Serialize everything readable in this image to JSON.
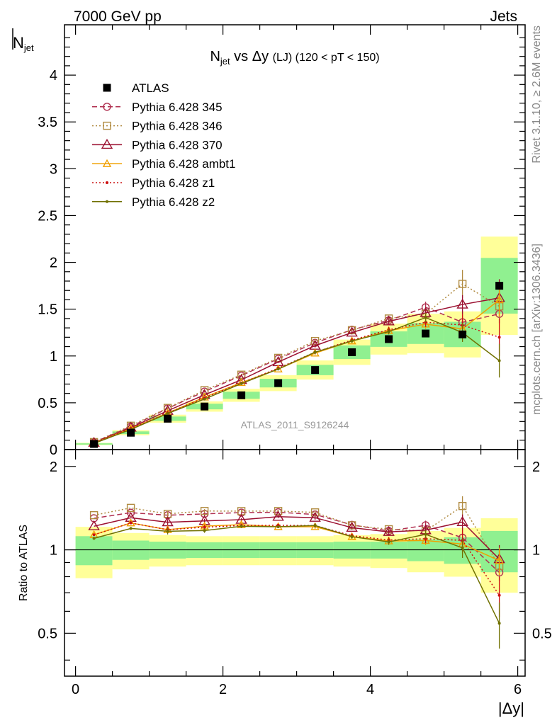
{
  "header": {
    "left": "7000 GeV pp",
    "right": "Jets"
  },
  "side_labels": {
    "rivet": "Rivet 3.1.10, ≥ 2.6M events",
    "mcplots": "mcplots.cern.ch [arXiv:1306.3436]"
  },
  "watermark": "ATLAS_2011_S9126244",
  "title": {
    "n": "N",
    "sub": "jet",
    "rest": " vs Δy ",
    "lj": "(LJ)",
    "range": " (120 < pT < 150)"
  },
  "ylabel": {
    "n": "N",
    "sub": "jet"
  },
  "xlabel": "|Δy|",
  "ratio_ylabel": "Ratio to ATLAS",
  "colors": {
    "atlas": "#000000",
    "p345": "#b03050",
    "p346": "#b08a40",
    "p370": "#9b1030",
    "ambt1": "#f0a000",
    "z1": "#cc1010",
    "z2": "#707000",
    "band_inner": "#90f090",
    "band_outer": "#ffff99"
  },
  "chart_data": {
    "type": "line",
    "x": [
      0.25,
      0.75,
      1.25,
      1.75,
      2.25,
      2.75,
      3.25,
      3.75,
      4.25,
      4.75,
      5.25,
      5.75
    ],
    "xlim": [
      -0.15,
      6.1
    ],
    "ylim": [
      0,
      4.5
    ],
    "ratio_ylim": [
      0.35,
      2.3
    ],
    "x_ticks": [
      0,
      2,
      4,
      6
    ],
    "y_ticks": [
      0,
      0.5,
      1,
      1.5,
      2,
      2.5,
      3,
      3.5,
      4
    ],
    "y_tick_labels": [
      "0",
      "0.5",
      "1",
      "1.5",
      "2",
      "2.5",
      "3",
      "3.5",
      "4"
    ],
    "ratio_ticks": [
      0.5,
      1,
      2
    ],
    "ratio_tick_labels": [
      "0.5",
      "1",
      "2"
    ],
    "atlas": {
      "name": "ATLAS",
      "values": [
        0.06,
        0.18,
        0.33,
        0.46,
        0.58,
        0.71,
        0.85,
        1.04,
        1.18,
        1.24,
        1.23,
        1.75
      ],
      "band_inner": [
        0.12,
        0.08,
        0.07,
        0.065,
        0.065,
        0.065,
        0.065,
        0.07,
        0.07,
        0.09,
        0.11,
        0.17
      ],
      "band_outer": [
        0.21,
        0.15,
        0.13,
        0.12,
        0.12,
        0.12,
        0.12,
        0.13,
        0.14,
        0.17,
        0.2,
        0.3
      ]
    },
    "series": [
      {
        "name": "Pythia 6.428 345",
        "style": "dashed",
        "marker": "circle",
        "values": [
          0.078,
          0.245,
          0.44,
          0.62,
          0.79,
          0.97,
          1.14,
          1.28,
          1.38,
          1.52,
          1.36,
          1.45
        ],
        "err": [
          0,
          0,
          0.01,
          0.01,
          0.01,
          0.01,
          0.02,
          0.02,
          0.03,
          0.06,
          0.12,
          0.1
        ]
      },
      {
        "name": "Pythia 6.428 346",
        "style": "dotted",
        "marker": "square",
        "values": [
          0.08,
          0.255,
          0.445,
          0.635,
          0.8,
          0.98,
          1.16,
          1.275,
          1.4,
          1.45,
          1.77,
          1.53
        ],
        "err": [
          0,
          0,
          0.01,
          0.01,
          0.01,
          0.01,
          0.02,
          0.02,
          0.03,
          0.05,
          0.15,
          0.12
        ]
      },
      {
        "name": "Pythia 6.428 370",
        "style": "solid",
        "marker": "triangle",
        "values": [
          0.073,
          0.235,
          0.415,
          0.585,
          0.745,
          0.935,
          1.11,
          1.25,
          1.37,
          1.46,
          1.55,
          1.62
        ],
        "err": [
          0,
          0,
          0.01,
          0.01,
          0.01,
          0.01,
          0.02,
          0.02,
          0.03,
          0.05,
          0.1,
          0.2
        ]
      },
      {
        "name": "Pythia 6.428 ambt1",
        "style": "solid",
        "marker": "tri-small",
        "values": [
          0.068,
          0.225,
          0.39,
          0.56,
          0.715,
          0.86,
          1.03,
          1.16,
          1.27,
          1.34,
          1.29,
          1.6
        ],
        "err": [
          0,
          0,
          0.01,
          0.01,
          0.01,
          0.01,
          0.02,
          0.02,
          0.03,
          0.05,
          0.1,
          0.18
        ]
      },
      {
        "name": "Pythia 6.428 z1",
        "style": "dotted",
        "marker": "dot",
        "values": [
          0.068,
          0.225,
          0.39,
          0.555,
          0.71,
          0.87,
          1.04,
          1.17,
          1.28,
          1.36,
          1.33,
          1.2
        ],
        "err": [
          0,
          0,
          0.01,
          0.01,
          0.01,
          0.01,
          0.02,
          0.02,
          0.03,
          0.05,
          0.12,
          0.2
        ]
      },
      {
        "name": "Pythia 6.428 z2",
        "style": "solid",
        "marker": "dot",
        "values": [
          0.066,
          0.215,
          0.385,
          0.54,
          0.705,
          0.86,
          1.04,
          1.16,
          1.26,
          1.41,
          1.25,
          0.95
        ],
        "err": [
          0,
          0,
          0.01,
          0.01,
          0.01,
          0.01,
          0.02,
          0.02,
          0.03,
          0.05,
          0.1,
          0.18
        ]
      }
    ]
  }
}
